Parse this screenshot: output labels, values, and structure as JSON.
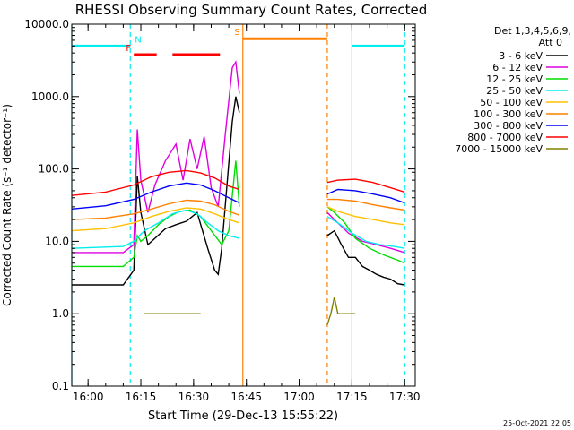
{
  "chart_data": {
    "type": "line",
    "title": "RHESSI Observing Summary Count Rates, Corrected",
    "xlabel": "Start Time (29-Dec-13 15:55:22)",
    "ylabel": "Corrected Count Rate (s⁻¹ detector⁻¹)",
    "yscale": "log",
    "ylim": [
      0.1,
      10000
    ],
    "ytick_labels": [
      "0.1",
      "1.0",
      "10.0",
      "100.0",
      "1000.0",
      "10000.0"
    ],
    "xlim": [
      "15:55:22",
      "17:33:00"
    ],
    "xtick_labels": [
      "16:00",
      "16:15",
      "16:30",
      "16:45",
      "17:00",
      "17:15",
      "17:30"
    ],
    "legend_header": [
      "Det 1,3,4,5,6,9,",
      "Att 0"
    ],
    "legend_position": "right",
    "timestamp": "25-Oct-2021 22:05",
    "data_gap": [
      "16:44:00",
      "17:08:00"
    ],
    "series": [
      {
        "name": "3 - 6 keV",
        "color": "#000000",
        "x": [
          "15:55:22",
          "16:10",
          "16:13",
          "16:14",
          "16:15",
          "16:17",
          "16:19",
          "16:22",
          "16:25",
          "16:28",
          "16:31",
          "16:34",
          "16:36",
          "16:37",
          "16:38",
          "16:40",
          "16:41",
          "16:42",
          "16:43",
          "17:08",
          "17:10",
          "17:12",
          "17:14",
          "17:16",
          "17:18",
          "17:20",
          "17:22",
          "17:24",
          "17:26",
          "17:28",
          "17:30"
        ],
        "y": [
          2.5,
          2.5,
          4,
          80,
          25,
          9,
          11,
          15,
          17,
          19,
          25,
          8,
          4,
          3.5,
          8,
          120,
          450,
          1000,
          600,
          12,
          14,
          9,
          6,
          6,
          4.5,
          4,
          3.5,
          3.2,
          3,
          2.6,
          2.5
        ]
      },
      {
        "name": "6 - 12 keV",
        "color": "#e000e0",
        "x": [
          "15:55:22",
          "16:10",
          "16:13",
          "16:14",
          "16:15",
          "16:17",
          "16:19",
          "16:22",
          "16:25",
          "16:27",
          "16:29",
          "16:31",
          "16:33",
          "16:35",
          "16:37",
          "16:39",
          "16:41",
          "16:42",
          "16:43",
          "17:08",
          "17:10",
          "17:14",
          "17:18",
          "17:22",
          "17:26",
          "17:30"
        ],
        "y": [
          7,
          7,
          9,
          350,
          70,
          25,
          60,
          130,
          220,
          70,
          260,
          100,
          280,
          55,
          30,
          300,
          2500,
          3000,
          1100,
          25,
          20,
          13,
          10,
          9,
          8,
          7
        ]
      },
      {
        "name": "12 - 25 keV",
        "color": "#00dd00",
        "x": [
          "15:55:22",
          "16:10",
          "16:13",
          "16:14",
          "16:15",
          "16:17",
          "16:20",
          "16:23",
          "16:26",
          "16:29",
          "16:32",
          "16:35",
          "16:38",
          "16:40",
          "16:42",
          "16:43",
          "17:08",
          "17:10",
          "17:13",
          "17:16",
          "17:20",
          "17:24",
          "17:28",
          "17:30"
        ],
        "y": [
          4.5,
          4.5,
          6,
          12,
          10,
          12,
          17,
          22,
          26,
          27,
          22,
          14,
          9,
          14,
          130,
          30,
          30,
          25,
          18,
          11,
          8,
          6.5,
          5.5,
          5
        ]
      },
      {
        "name": "25 - 50 keV",
        "color": "#00eeee",
        "x": [
          "15:55:22",
          "16:10",
          "16:13",
          "16:16",
          "16:20",
          "16:24",
          "16:28",
          "16:31",
          "16:34",
          "16:37",
          "16:40",
          "16:43",
          "17:08",
          "17:11",
          "17:15",
          "17:19",
          "17:23",
          "17:27",
          "17:30"
        ],
        "y": [
          8,
          8.5,
          10,
          14,
          18,
          24,
          27,
          24,
          18,
          14,
          12,
          11,
          22,
          18,
          13,
          10,
          9,
          8.5,
          8
        ]
      },
      {
        "name": "50 - 100 keV",
        "color": "#ffc000",
        "x": [
          "15:55:22",
          "16:05",
          "16:13",
          "16:18",
          "16:23",
          "16:28",
          "16:32",
          "16:36",
          "16:40",
          "16:43",
          "17:08",
          "17:11",
          "17:16",
          "17:21",
          "17:26",
          "17:30"
        ],
        "y": [
          14,
          15,
          18,
          22,
          26,
          29,
          28,
          24,
          20,
          18,
          30,
          26,
          22,
          20,
          18,
          17
        ]
      },
      {
        "name": "100 - 300 keV",
        "color": "#ff8000",
        "x": [
          "15:55:22",
          "16:05",
          "16:13",
          "16:18",
          "16:23",
          "16:28",
          "16:32",
          "16:36",
          "16:40",
          "16:43",
          "17:08",
          "17:11",
          "17:16",
          "17:21",
          "17:26",
          "17:30"
        ],
        "y": [
          20,
          21,
          24,
          28,
          33,
          37,
          36,
          32,
          26,
          23,
          38,
          38,
          36,
          32,
          29,
          27
        ]
      },
      {
        "name": "300 - 800 keV",
        "color": "#0000ff",
        "x": [
          "15:55:22",
          "16:05",
          "16:13",
          "16:18",
          "16:23",
          "16:28",
          "16:32",
          "16:36",
          "16:40",
          "16:43",
          "17:08",
          "17:11",
          "17:16",
          "17:21",
          "17:26",
          "17:30"
        ],
        "y": [
          28,
          31,
          38,
          48,
          58,
          64,
          60,
          50,
          40,
          34,
          45,
          52,
          50,
          45,
          40,
          34
        ]
      },
      {
        "name": "800 - 7000 keV",
        "color": "#ff0000",
        "x": [
          "15:55:22",
          "16:05",
          "16:13",
          "16:18",
          "16:23",
          "16:28",
          "16:32",
          "16:36",
          "16:40",
          "16:43",
          "17:08",
          "17:11",
          "17:16",
          "17:21",
          "17:26",
          "17:30"
        ],
        "y": [
          43,
          48,
          60,
          78,
          90,
          95,
          88,
          75,
          58,
          52,
          65,
          70,
          72,
          65,
          55,
          48
        ]
      },
      {
        "name": "7000 - 15000 keV",
        "color": "#808000",
        "x": [
          "16:16",
          "16:18",
          "16:22",
          "16:26",
          "16:30",
          "16:32",
          "17:08",
          "17:09",
          "17:10",
          "17:11",
          "17:12",
          "17:13",
          "17:16"
        ],
        "y": [
          1,
          1,
          1,
          1,
          1,
          1,
          0.7,
          1,
          1.7,
          1,
          1,
          1,
          1
        ]
      }
    ],
    "flags": [
      {
        "label": "N",
        "color": "#00eeee",
        "segments": [
          [
            "15:55:22",
            "16:12:00"
          ],
          [
            "17:15:00",
            "17:30:00"
          ]
        ],
        "level": 5000
      },
      {
        "label": "F",
        "color": "#ff0000",
        "segments": [
          [
            "16:13:00",
            "16:19:30"
          ],
          [
            "16:24:00",
            "16:37:30"
          ]
        ],
        "level": 3800
      },
      {
        "label": "S",
        "color": "#ff8000",
        "segments": [
          [
            "16:44:00",
            "17:08:00"
          ]
        ],
        "level": 6300
      }
    ],
    "vlines": [
      {
        "x": "15:55:22",
        "color": "#00eeee",
        "style": "solid"
      },
      {
        "x": "16:12:00",
        "color": "#00eeee",
        "style": "dashed"
      },
      {
        "x": "16:44:00",
        "color": "#ff8000",
        "style": "solid"
      },
      {
        "x": "17:08:00",
        "color": "#ff8000",
        "style": "dashed"
      },
      {
        "x": "17:15:00",
        "color": "#00eeee",
        "style": "solid"
      },
      {
        "x": "17:30:00",
        "color": "#00eeee",
        "style": "dashed"
      }
    ]
  }
}
